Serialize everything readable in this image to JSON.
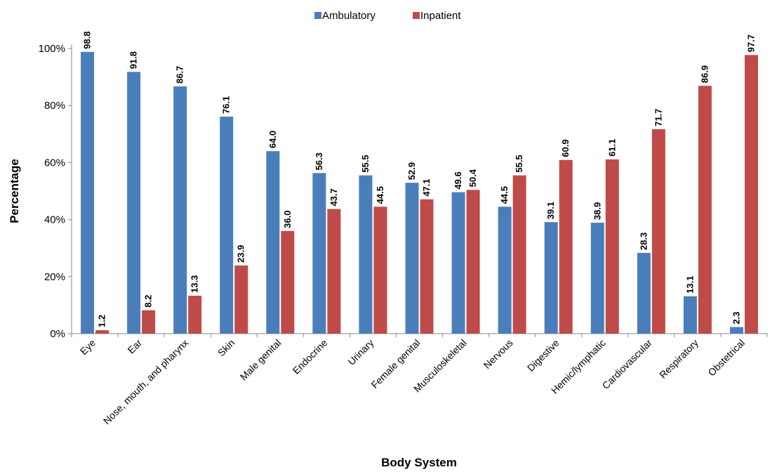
{
  "chart_data": {
    "type": "bar",
    "title": "",
    "xlabel": "Body System",
    "ylabel": "Percentage",
    "ylim": [
      0,
      100
    ],
    "yticks": [
      0,
      20,
      40,
      60,
      80,
      100
    ],
    "ytick_labels": [
      "0%",
      "20%",
      "40%",
      "60%",
      "80%",
      "100%"
    ],
    "grid": false,
    "legend_position": "top-center",
    "categories": [
      "Eye",
      "Ear",
      "Nose, mouth, and pharynx",
      "Skin",
      "Male genital",
      "Endocrine",
      "Urinary",
      "Female genital",
      "Musculoskeletal",
      "Nervous",
      "Digestive",
      "Hemic/lymphatic",
      "Cardiovascular",
      "Respiratory",
      "Obstetrical"
    ],
    "series": [
      {
        "name": "Ambulatory",
        "color": "#4a7ebb",
        "values": [
          98.8,
          91.8,
          86.7,
          76.1,
          64.0,
          56.3,
          55.5,
          52.9,
          49.6,
          44.5,
          39.1,
          38.9,
          28.3,
          13.1,
          2.3
        ],
        "labels": [
          "98.8",
          "91.8",
          "86.7",
          "76.1",
          "64.0",
          "56.3",
          "55.5",
          "52.9",
          "49.6",
          "44.5",
          "39.1",
          "38.9",
          "28.3",
          "13.1",
          "2.3"
        ]
      },
      {
        "name": "Inpatient",
        "color": "#be4b48",
        "values": [
          1.2,
          8.2,
          13.3,
          23.9,
          36.0,
          43.7,
          44.5,
          47.1,
          50.4,
          55.5,
          60.9,
          61.1,
          71.7,
          86.9,
          97.7
        ],
        "labels": [
          "1.2",
          "8.2",
          "13.3",
          "23.9",
          "36.0",
          "43.7",
          "44.5",
          "47.1",
          "50.4",
          "55.5",
          "60.9",
          "61.1",
          "71.7",
          "86.9",
          "97.7"
        ]
      }
    ]
  }
}
